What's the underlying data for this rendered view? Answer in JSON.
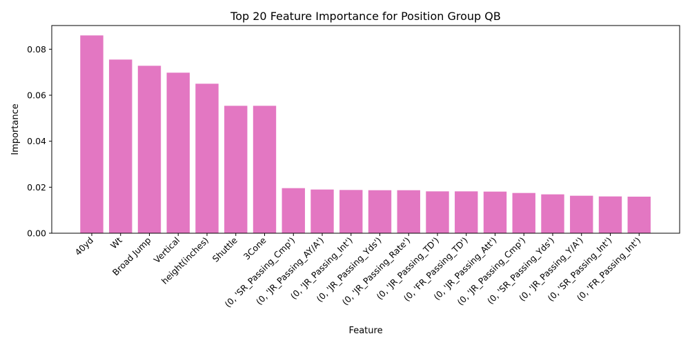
{
  "chart_data": {
    "type": "bar",
    "title": "Top 20 Feature Importance for Position Group QB",
    "xlabel": "Feature",
    "ylabel": "Importance",
    "ylim": [
      0,
      0.0903
    ],
    "yticks": [
      "0.00",
      "0.02",
      "0.04",
      "0.06",
      "0.08"
    ],
    "ytick_values": [
      0,
      0.02,
      0.04,
      0.06,
      0.08
    ],
    "bar_color": "#e377c2",
    "categories": [
      "40yd",
      "Wt",
      "Broad Jump",
      "Vertical",
      "height(inches)",
      "Shuttle",
      "3Cone",
      "(0, 'SR_Passing_Cmp')",
      "(0, 'JR_Passing_AY/A')",
      "(0, 'JR_Passing_Int')",
      "(0, 'JR_Passing_Yds')",
      "(0, 'JR_Passing_Rate')",
      "(0, 'JR_Passing_TD')",
      "(0, 'FR_Passing_TD')",
      "(0, 'JR_Passing_Att')",
      "(0, 'JR_Passing_Cmp')",
      "(0, 'SR_Passing_Yds')",
      "(0, 'JR_Passing_Y/A')",
      "(0, 'SR_Passing_Int')",
      "(0, 'FR_Passing_Int')"
    ],
    "values": [
      0.086,
      0.0755,
      0.0728,
      0.0698,
      0.065,
      0.0554,
      0.0554,
      0.0196,
      0.019,
      0.0188,
      0.0187,
      0.0187,
      0.0182,
      0.0182,
      0.0181,
      0.0175,
      0.0169,
      0.0163,
      0.016,
      0.0159
    ]
  }
}
